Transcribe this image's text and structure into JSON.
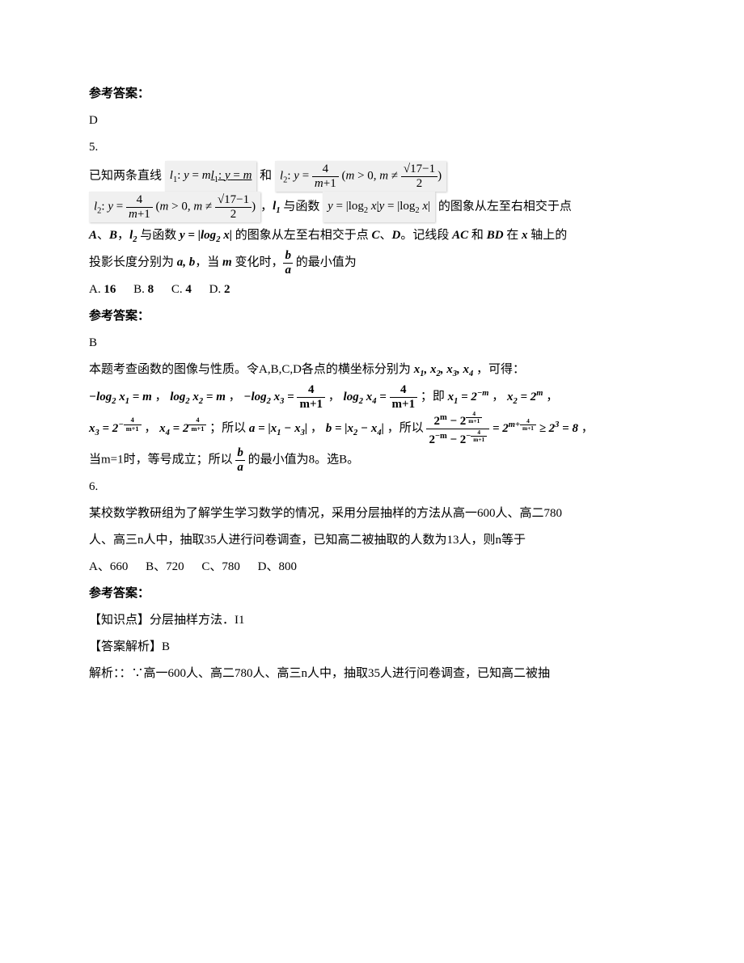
{
  "q4": {
    "answer_label": "参考答案：",
    "answer_value": "D"
  },
  "q5": {
    "number": "5.",
    "intro_1": "已知两条直线",
    "formula_l1_a": "l₁: y = m",
    "formula_l1_b": "l₁: y = m",
    "and": "和",
    "formula_l2_a": "l₂: y = 4/(m+1) (m > 0, m ≠ (√17−1)/2)",
    "formula_l2_b": "l₂: y = 4/(m+1) (m > 0, m ≠ (√17−1)/2)",
    "comma_l1": "，l₁ 与函数",
    "func1": "y = |log₂ x|",
    "func1_dup": "y = |log₂ x|",
    "text_after_func1": "的图象从左至右相交于点",
    "points_ab": "A、B，l₂ 与函数",
    "func2": "y = |log₂ x|",
    "text_after_func2": "的图象从左至右相交于点",
    "points_cd": "C、D",
    "text_segments": "。记线段 AC 和 BD 在 x 轴上的",
    "text_proj": "投影长度分别为 a, b，当 m 变化时，",
    "ratio_desc": "的最小值为",
    "options": {
      "A": "A. 16",
      "B": "B. 8",
      "C": "C. 4",
      "D": "D. 2"
    },
    "answer_label": "参考答案：",
    "answer_value": "B",
    "explain_1": "本题考查函数的图像与性质。令A,B,C,D各点的横坐标分别为",
    "xs": "x₁, x₂, x₃, x₄",
    "explain_1_end": "，可得：",
    "eq1": "−log₂ x₁ = m",
    "eq2": "log₂ x₂ = m",
    "eq3": "−log₂ x₃ = 4/(m+1)",
    "eq4": "log₂ x₄ = 4/(m+1)",
    "ji": "；即",
    "x1v": "x₁ = 2⁻ᵐ",
    "x2v": "x₂ = 2ᵐ",
    "x3v": "x₃ = 2^(−4/(m+1))",
    "x4v": "x₄ = 2^(4/(m+1))",
    "suoyi": "；所以",
    "a_def": "a = |x₁ − x₃|",
    "b_def": "b = |x₂ − x₄|",
    "big_frac": "(2ᵐ − 2^(4/(m+1))) / (2⁻ᵐ − 2^(−4/(m+1))) = 2^(m + 4/(m+1)) ≥ 2³ = 8",
    "explain_end": "当m=1时，等号成立；所以",
    "explain_end2": "的最小值为8。选B。"
  },
  "q6": {
    "number": "6.",
    "text1": "某校数学教研组为了解学生学习数学的情况，采用分层抽样的方法从高一600人、高二780",
    "text2": "人、高三n人中，抽取35人进行问卷调查，已知高二被抽取的人数为13人，则n等于",
    "options": {
      "A": "A、660",
      "B": "B、720",
      "C": "C、780",
      "D": "D、800"
    },
    "answer_label": "参考答案：",
    "knowledge": "【知识点】分层抽样方法．I1",
    "answer_parse": "【答案解析】B",
    "parse_label": "解析：：∵高一600人、高二780人、高三n人中，抽取35人进行问卷调查，已知高二被抽"
  }
}
